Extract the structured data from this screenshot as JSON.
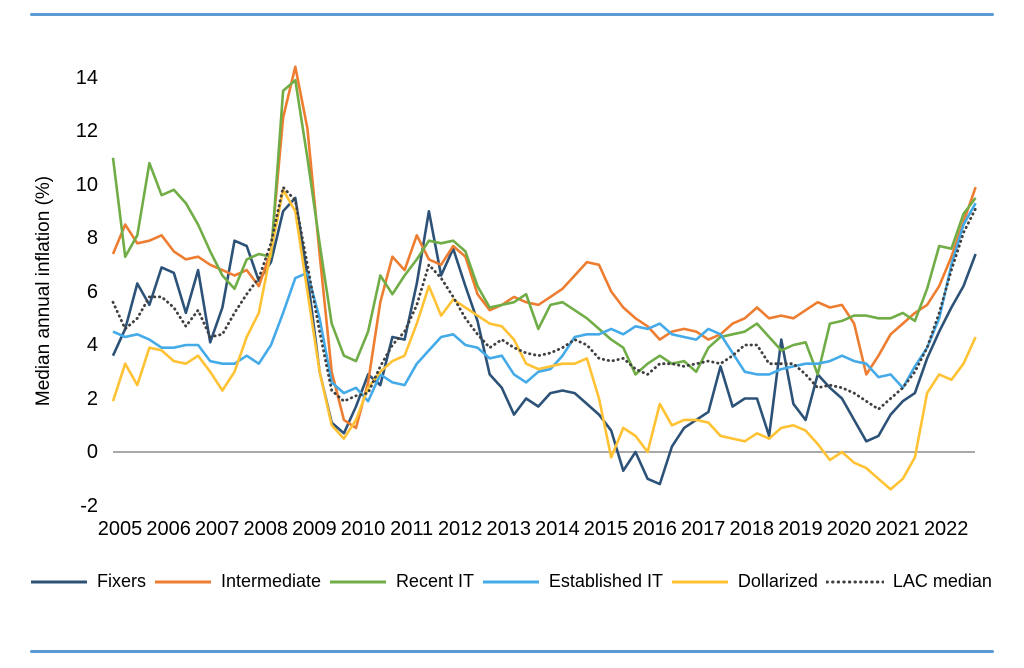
{
  "figure": {
    "y_axis_title": "Median annual inflation (%)"
  },
  "decor": {
    "border_color": "#5B9BD5",
    "zero_line_color": "#8C8C8C",
    "text_color": "#000000"
  },
  "chart_data": {
    "type": "line",
    "title": "",
    "xlabel": "",
    "ylabel": "Median annual inflation (%)",
    "x_start": 2005.0,
    "x_step": 0.25,
    "x_end": 2022.75,
    "ylim": [
      -2,
      14
    ],
    "y_ticks": [
      14,
      12,
      10,
      8,
      6,
      4,
      2,
      0,
      -2
    ],
    "x_tick_labels": [
      "2005",
      "2006",
      "2007",
      "2008",
      "2009",
      "2010",
      "2011",
      "2012",
      "2013",
      "2014",
      "2015",
      "2016",
      "2017",
      "2018",
      "2019",
      "2020",
      "2021",
      "2022"
    ],
    "grid": false,
    "zero_line": true,
    "legend_position": "bottom",
    "series": [
      {
        "name": "Fixers",
        "color": "#2D5278",
        "style": "solid",
        "values": [
          3.6,
          4.6,
          6.3,
          5.5,
          6.9,
          6.7,
          5.2,
          6.8,
          4.1,
          5.4,
          7.9,
          7.7,
          6.4,
          7.1,
          9.0,
          9.5,
          6.6,
          3.0,
          1.1,
          0.7,
          1.7,
          2.9,
          2.5,
          4.3,
          4.2,
          6.3,
          9.0,
          6.6,
          7.6,
          6.2,
          4.9,
          2.9,
          2.4,
          1.4,
          2.0,
          1.7,
          2.2,
          2.3,
          2.2,
          1.8,
          1.4,
          0.8,
          -0.7,
          0.0,
          -1.0,
          -1.2,
          0.2,
          0.9,
          1.2,
          1.5,
          3.2,
          1.7,
          2.0,
          2.0,
          0.6,
          4.2,
          1.8,
          1.2,
          2.9,
          2.4,
          2.0,
          1.2,
          0.4,
          0.6,
          1.4,
          1.9,
          2.2,
          3.5,
          4.5,
          5.4,
          6.2,
          7.4
        ]
      },
      {
        "name": "Intermediate",
        "color": "#ED7D31",
        "style": "solid",
        "values": [
          7.4,
          8.5,
          7.8,
          7.9,
          8.1,
          7.5,
          7.2,
          7.3,
          7.0,
          6.8,
          6.6,
          6.8,
          6.2,
          7.5,
          12.5,
          14.4,
          12.1,
          7.4,
          3.0,
          1.2,
          0.9,
          2.6,
          5.6,
          7.3,
          6.8,
          8.1,
          7.2,
          7.0,
          7.7,
          7.3,
          5.9,
          5.3,
          5.5,
          5.8,
          5.6,
          5.5,
          5.8,
          6.1,
          6.6,
          7.1,
          7.0,
          6.0,
          5.4,
          5.0,
          4.7,
          4.2,
          4.5,
          4.6,
          4.5,
          4.2,
          4.4,
          4.8,
          5.0,
          5.4,
          5.0,
          5.1,
          5.0,
          5.3,
          5.6,
          5.4,
          5.5,
          4.8,
          2.9,
          3.6,
          4.4,
          4.8,
          5.2,
          5.5,
          6.2,
          7.3,
          8.6,
          9.9
        ]
      },
      {
        "name": "Recent IT",
        "color": "#70AD47",
        "style": "solid",
        "values": [
          11.0,
          7.3,
          8.1,
          10.8,
          9.6,
          9.8,
          9.3,
          8.5,
          7.5,
          6.6,
          6.1,
          7.2,
          7.4,
          7.3,
          13.5,
          13.9,
          11.0,
          7.8,
          4.8,
          3.6,
          3.4,
          4.5,
          6.6,
          5.9,
          6.6,
          7.2,
          7.9,
          7.8,
          7.9,
          7.5,
          6.2,
          5.4,
          5.5,
          5.6,
          5.9,
          4.6,
          5.5,
          5.6,
          5.3,
          5.0,
          4.6,
          4.2,
          3.9,
          2.9,
          3.3,
          3.6,
          3.3,
          3.4,
          3.0,
          3.9,
          4.3,
          4.4,
          4.5,
          4.8,
          4.3,
          3.8,
          4.0,
          4.1,
          2.9,
          4.8,
          4.9,
          5.1,
          5.1,
          5.0,
          5.0,
          5.2,
          4.9,
          6.1,
          7.7,
          7.6,
          8.9,
          9.5
        ]
      },
      {
        "name": "Established IT",
        "color": "#45AAE8",
        "style": "solid",
        "values": [
          4.5,
          4.3,
          4.4,
          4.2,
          3.9,
          3.9,
          4.0,
          4.0,
          3.4,
          3.3,
          3.3,
          3.6,
          3.3,
          4.0,
          5.2,
          6.5,
          6.7,
          5.0,
          2.6,
          2.2,
          2.4,
          1.9,
          2.9,
          2.6,
          2.5,
          3.3,
          3.8,
          4.3,
          4.4,
          4.0,
          3.9,
          3.5,
          3.6,
          2.9,
          2.6,
          3.0,
          3.1,
          3.6,
          4.3,
          4.4,
          4.4,
          4.6,
          4.4,
          4.7,
          4.6,
          4.8,
          4.4,
          4.3,
          4.2,
          4.6,
          4.4,
          3.7,
          3.0,
          2.9,
          2.9,
          3.1,
          3.2,
          3.3,
          3.3,
          3.4,
          3.6,
          3.4,
          3.3,
          2.8,
          2.9,
          2.4,
          3.2,
          3.9,
          5.0,
          7.0,
          8.5,
          9.3
        ]
      },
      {
        "name": "Dollarized",
        "color": "#FFC234",
        "style": "solid",
        "values": [
          1.9,
          3.3,
          2.5,
          3.9,
          3.8,
          3.4,
          3.3,
          3.6,
          3.0,
          2.3,
          3.0,
          4.3,
          5.2,
          7.5,
          9.8,
          9.0,
          6.0,
          3.0,
          1.0,
          0.5,
          1.2,
          2.4,
          3.0,
          3.4,
          3.6,
          4.8,
          6.2,
          5.1,
          5.7,
          5.4,
          5.1,
          4.8,
          4.7,
          4.2,
          3.3,
          3.1,
          3.2,
          3.3,
          3.3,
          3.5,
          2.0,
          -0.2,
          0.9,
          0.6,
          0.0,
          1.8,
          1.0,
          1.2,
          1.2,
          1.1,
          0.6,
          0.5,
          0.4,
          0.7,
          0.5,
          0.9,
          1.0,
          0.8,
          0.3,
          -0.3,
          0.0,
          -0.4,
          -0.6,
          -1.0,
          -1.4,
          -1.0,
          -0.2,
          2.2,
          2.9,
          2.7,
          3.3,
          4.3
        ]
      },
      {
        "name": "LAC median",
        "color": "#404040",
        "style": "dotted",
        "values": [
          5.6,
          4.6,
          5.0,
          5.8,
          5.8,
          5.4,
          4.7,
          5.3,
          4.3,
          4.4,
          5.2,
          5.9,
          6.5,
          7.8,
          9.9,
          9.4,
          7.0,
          4.5,
          2.3,
          1.9,
          2.1,
          2.2,
          3.2,
          4.0,
          4.5,
          5.5,
          7.0,
          6.5,
          5.8,
          5.0,
          4.4,
          3.9,
          4.2,
          3.9,
          3.7,
          3.6,
          3.7,
          3.9,
          4.2,
          4.0,
          3.5,
          3.4,
          3.5,
          3.1,
          2.9,
          3.3,
          3.3,
          3.2,
          3.3,
          3.4,
          3.3,
          3.6,
          4.0,
          4.0,
          3.3,
          3.3,
          3.3,
          2.9,
          2.4,
          2.5,
          2.4,
          2.2,
          1.9,
          1.6,
          2.0,
          2.4,
          3.0,
          3.9,
          5.2,
          6.8,
          8.2,
          9.1
        ]
      }
    ]
  }
}
